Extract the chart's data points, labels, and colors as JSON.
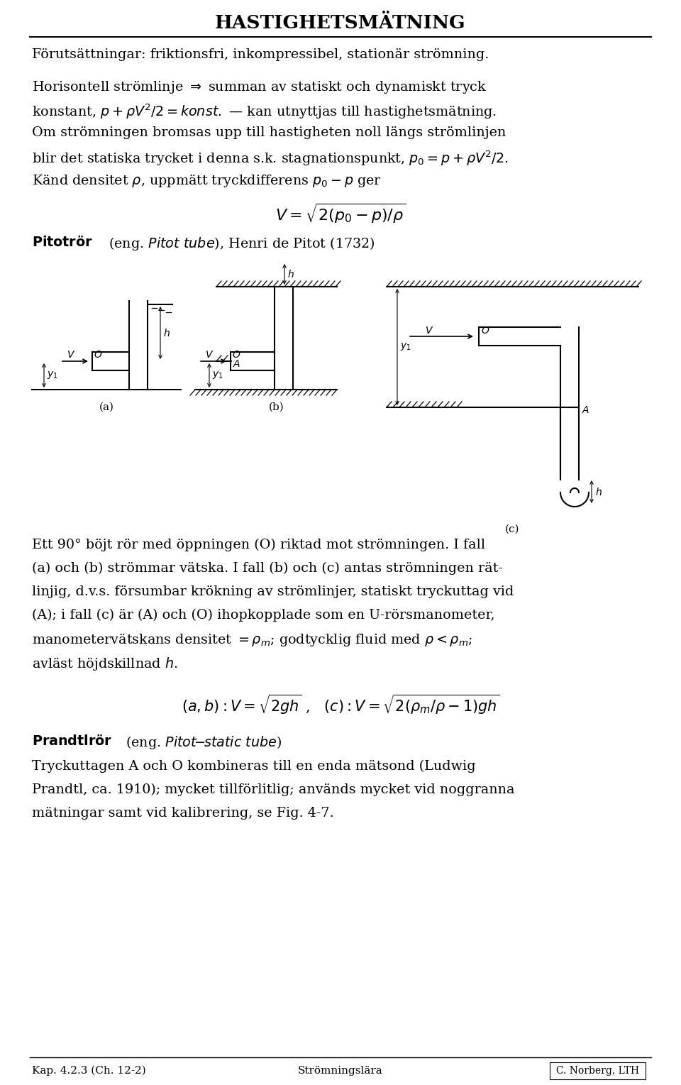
{
  "title": "HASTIGHETSMÄTNING",
  "bg_color": "#ffffff",
  "text_color": "#000000",
  "footer_left": "Kap. 4.2.3 (Ch. 12-2)",
  "footer_center": "Strömningslära",
  "footer_right": "C. Norberg, LTH"
}
